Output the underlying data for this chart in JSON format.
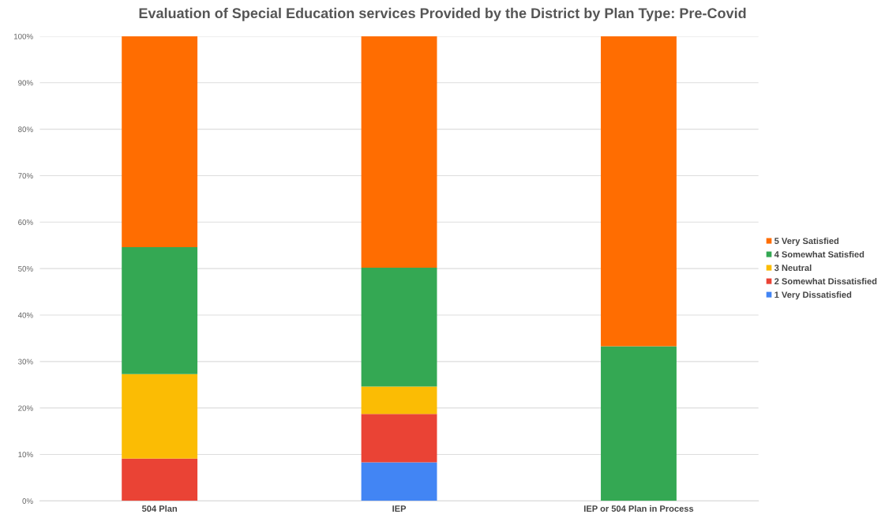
{
  "chart_data": {
    "type": "bar",
    "title": "Evaluation of Special Education services Provided by the District by Plan Type: Pre-Covid",
    "categories": [
      "504 Plan",
      "IEP",
      "IEP or 504 Plan in Process"
    ],
    "stacked": true,
    "series": [
      {
        "name": "1 Very Dissatisfied",
        "color": "#4285f4",
        "values": [
          null,
          8.3,
          null
        ]
      },
      {
        "name": "2 Somewhat Dissatisfied",
        "color": "#ea4335",
        "values": [
          9.1,
          10.4,
          null
        ]
      },
      {
        "name": "3 Neutral",
        "color": "#fbbc04",
        "values": [
          18.2,
          5.9,
          null
        ]
      },
      {
        "name": "4 Somewhat Satisfied",
        "color": "#34a853",
        "values": [
          27.3,
          25.6,
          33.3
        ]
      },
      {
        "name": "5 Very Satisfied",
        "color": "#ff6d01",
        "values": [
          45.4,
          49.8,
          66.7
        ]
      }
    ],
    "ylim": [
      0,
      100
    ],
    "yticks": [
      {
        "value": 0,
        "label": "0%"
      },
      {
        "value": 10,
        "label": "10%"
      },
      {
        "value": 20,
        "label": "20%"
      },
      {
        "value": 30,
        "label": "30%"
      },
      {
        "value": 40,
        "label": "40%"
      },
      {
        "value": 50,
        "label": "50%"
      },
      {
        "value": 60,
        "label": "60%"
      },
      {
        "value": 70,
        "label": "70%"
      },
      {
        "value": 80,
        "label": "80%"
      },
      {
        "value": 90,
        "label": "90%"
      },
      {
        "value": 100,
        "label": "100%"
      }
    ],
    "grid": "y",
    "legend": "right"
  }
}
